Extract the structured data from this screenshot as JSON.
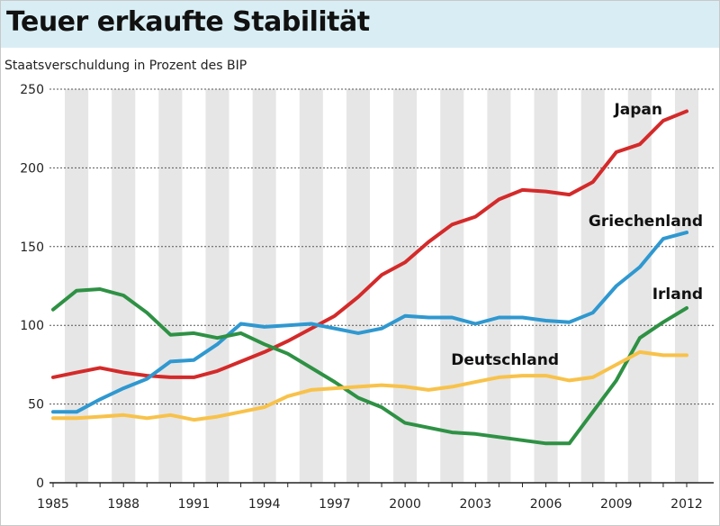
{
  "header": {
    "title": "Teuer erkaufte Stabilität",
    "subtitle": "Staatsverschuldung in Prozent des BIP"
  },
  "chart_data": {
    "type": "line",
    "title": "Teuer erkaufte Stabilität",
    "subtitle": "Staatsverschuldung in Prozent des BIP",
    "xlabel": "",
    "ylabel": "",
    "xlim": [
      1985,
      2012
    ],
    "ylim": [
      0,
      250
    ],
    "yticks": [
      0,
      50,
      100,
      150,
      200,
      250
    ],
    "xticks": [
      1985,
      1988,
      1991,
      1994,
      1997,
      2000,
      2003,
      2006,
      2009,
      2012
    ],
    "grid": "horizontal dotted",
    "x": [
      1985,
      1986,
      1987,
      1988,
      1989,
      1990,
      1991,
      1992,
      1993,
      1994,
      1995,
      1996,
      1997,
      1998,
      1999,
      2000,
      2001,
      2002,
      2003,
      2004,
      2005,
      2006,
      2007,
      2008,
      2009,
      2010,
      2011,
      2012
    ],
    "series": [
      {
        "name": "Japan",
        "color": "#d42a2a",
        "values": [
          67,
          70,
          73,
          70,
          68,
          67,
          67,
          71,
          77,
          83,
          90,
          98,
          106,
          118,
          132,
          140,
          153,
          164,
          169,
          180,
          186,
          185,
          183,
          191,
          210,
          215,
          230,
          236
        ]
      },
      {
        "name": "Griechenland",
        "color": "#2f98d0",
        "values": [
          45,
          45,
          53,
          60,
          66,
          77,
          78,
          88,
          101,
          99,
          100,
          101,
          98,
          95,
          98,
          106,
          105,
          105,
          101,
          105,
          105,
          103,
          102,
          108,
          125,
          137,
          155,
          159
        ]
      },
      {
        "name": "Irland",
        "color": "#2e9144",
        "values": [
          110,
          122,
          123,
          119,
          108,
          94,
          95,
          92,
          95,
          88,
          82,
          73,
          64,
          54,
          48,
          38,
          35,
          32,
          31,
          29,
          27,
          25,
          25,
          45,
          65,
          92,
          102,
          111
        ]
      },
      {
        "name": "Deutschland",
        "color": "#f8c24a",
        "values": [
          41,
          41,
          42,
          43,
          41,
          43,
          40,
          42,
          45,
          48,
          55,
          59,
          60,
          61,
          62,
          61,
          59,
          61,
          64,
          67,
          68,
          68,
          65,
          67,
          75,
          83,
          81,
          81
        ]
      }
    ]
  }
}
